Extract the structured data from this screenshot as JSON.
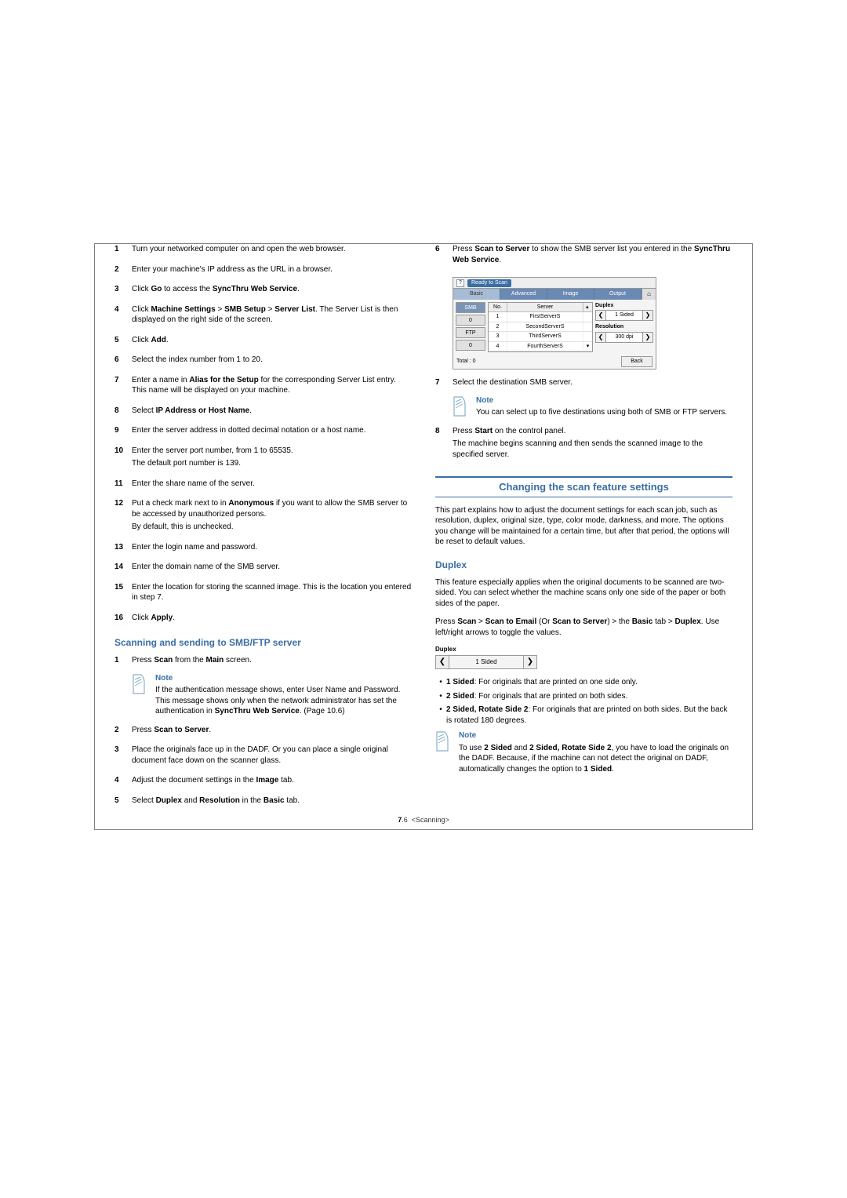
{
  "left": {
    "steps1": [
      {
        "n": "1",
        "lines": [
          "Turn your networked computer on and open the web browser."
        ]
      },
      {
        "n": "2",
        "lines": [
          "Enter your machine's IP address as the URL in a browser."
        ]
      },
      {
        "n": "3",
        "lines": [
          {
            "pre": "Click ",
            "b1": "Go",
            "mid": " to access the ",
            "b2": "SyncThru Web Service",
            "post": "."
          }
        ]
      },
      {
        "n": "4",
        "lines": [
          {
            "pre": "Click ",
            "b1": "Machine Settings",
            "mid": " > ",
            "b2": "SMB Setup",
            "mid2": " > ",
            "b3": "Server List",
            "post": ". The Server List is then displayed on the right side of the screen."
          }
        ]
      },
      {
        "n": "5",
        "lines": [
          {
            "pre": "Click ",
            "b1": "Add",
            "post": "."
          }
        ]
      },
      {
        "n": "6",
        "lines": [
          "Select the index number from 1 to 20."
        ]
      },
      {
        "n": "7",
        "lines": [
          {
            "pre": "Enter a name in ",
            "b1": "Alias for the Setup",
            "post": " for the corresponding Server List entry. This name will be displayed on your machine."
          }
        ]
      },
      {
        "n": "8",
        "lines": [
          {
            "pre": "Select ",
            "b1": "IP Address or Host Name",
            "post": "."
          }
        ]
      },
      {
        "n": "9",
        "lines": [
          "Enter the server address in dotted decimal notation or a host name."
        ]
      },
      {
        "n": "10",
        "lines": [
          "Enter the server port number, from 1 to 65535.",
          "The default port number is 139."
        ]
      },
      {
        "n": "11",
        "lines": [
          "Enter the share name of the server."
        ]
      },
      {
        "n": "12",
        "lines": [
          {
            "pre": "Put a check mark next to in ",
            "b1": "Anonymous",
            "post": " if you want to allow the SMB server to be accessed by unauthorized persons."
          },
          "By default, this is unchecked."
        ]
      },
      {
        "n": "13",
        "lines": [
          "Enter the login name and password."
        ]
      },
      {
        "n": "14",
        "lines": [
          "Enter the domain name of the SMB server."
        ]
      },
      {
        "n": "15",
        "lines": [
          "Enter the location for storing the scanned image. This is the location you entered in step 7."
        ]
      },
      {
        "n": "16",
        "lines": [
          {
            "pre": "Click ",
            "b1": "Apply",
            "post": "."
          }
        ]
      }
    ],
    "heading2": "Scanning and sending to SMB/FTP server",
    "step_b1": {
      "n": "1",
      "pre": "Press ",
      "b1": "Scan",
      "mid": " from the ",
      "b2": "Main",
      "post": " screen."
    },
    "note1": {
      "title": "Note",
      "body_pre": "If the authentication message shows, enter User Name and Password. This message shows only when the network administrator has set the authentication in ",
      "body_b": "SyncThru Web Service",
      "body_post": ". (Page 10.6)"
    },
    "steps2": [
      {
        "n": "2",
        "lines": [
          {
            "pre": "Press ",
            "b1": "Scan to Server",
            "post": "."
          }
        ]
      },
      {
        "n": "3",
        "lines": [
          "Place the originals face up in the DADF. Or you can place a single original document face down on the scanner glass."
        ]
      },
      {
        "n": "4",
        "lines": [
          {
            "pre": "Adjust the document settings in the ",
            "b1": "Image",
            "post": " tab."
          }
        ]
      },
      {
        "n": "5",
        "lines": [
          {
            "pre": "Select ",
            "b1": "Duplex",
            "mid": " and ",
            "b2": "Resolution",
            "mid2": " in the ",
            "b3": "Basic",
            "post": " tab."
          }
        ]
      }
    ]
  },
  "right": {
    "step6": {
      "n": "6",
      "pre": "Press ",
      "b1": "Scan to Server",
      "mid": " to show the SMB server list you entered in the ",
      "b2": "SyncThru Web Service",
      "post": "."
    },
    "ui": {
      "ready": "Ready to Scan",
      "tabs": {
        "basic": "Basic",
        "advanced": "Advanced",
        "image": "Image",
        "output": "Output"
      },
      "home": "⌂",
      "leftBtns": {
        "smb": "SMB",
        "zero1": "0",
        "ftp": "FTP",
        "zero2": "0"
      },
      "th": {
        "no": "No.",
        "server": "Server"
      },
      "rows": [
        {
          "no": "1",
          "server": "FirstServerS"
        },
        {
          "no": "2",
          "server": "SecondServerS"
        },
        {
          "no": "3",
          "server": "ThirdServerS"
        },
        {
          "no": "4",
          "server": "FourthServerS"
        }
      ],
      "scrollUp": "▴",
      "scrollDown": "▾",
      "panels": {
        "duplex": {
          "title": "Duplex",
          "val": "1 Sided"
        },
        "resolution": {
          "title": "Resolution",
          "val": "300 dpi"
        }
      },
      "arrowL": "❮",
      "arrowR": "❯",
      "total": "Total : 0",
      "back": "Back"
    },
    "step7": {
      "n": "7",
      "text": "Select the destination SMB server."
    },
    "note_server": {
      "title": "Note",
      "text": "You can select up to five destinations using both of SMB or FTP servers."
    },
    "step8": {
      "n": "8",
      "pre": "Press ",
      "b1": "Start",
      "mid": " on the control panel."
    },
    "step8_after": "The machine begins scanning and then sends the scanned image to the specified server.",
    "section_heading": "Changing the scan feature settings",
    "section_intro": "This part explains how to adjust the document settings for each scan job, such as resolution, duplex, original size, type, color mode, darkness, and more. The options you change will be maintained for a certain time, but after that period, the options will be reset to default values.",
    "duplex_heading": "Duplex",
    "duplex_intro": "This feature especially applies when the original documents to be scanned are two-sided. You can select whether the machine scans only one side of the paper or both sides of the paper.",
    "duplex_press": {
      "pre": "Press ",
      "b1": "Scan",
      "g1": " > ",
      "b2": "Scan to Email",
      "mid": " (Or ",
      "b3": "Scan to Server",
      "mid2": ") > the ",
      "b4": "Basic",
      "mid3": " tab > ",
      "b5": "Duplex",
      "post": ". Use left/right arrows to toggle the values."
    },
    "duplex_widget": {
      "label": "Duplex",
      "val": "1 Sided",
      "l": "❮",
      "r": "❯"
    },
    "bullets": [
      {
        "b": "1 Sided",
        "post": ": For originals that are printed on one side only."
      },
      {
        "b": "2 Sided",
        "post": ": For originals that are printed on both sides."
      },
      {
        "b": "2 Sided, Rotate Side 2",
        "post": ": For originals that are printed on both sides. But the back is rotated 180 degrees."
      }
    ],
    "note_duplex": {
      "title": "Note",
      "pre": "To use ",
      "b1": "2 Sided",
      "mid": " and ",
      "b2": "2 Sided, Rotate Side 2",
      "mid2": ", you have to load the originals on the DADF. Because, if the machine can not detect the original on DADF, automatically changes the option to ",
      "b3": "1 Sided",
      "post": "."
    }
  },
  "footer": {
    "pn": "7",
    "sub": ".6",
    "chapter": "<Scanning>"
  }
}
